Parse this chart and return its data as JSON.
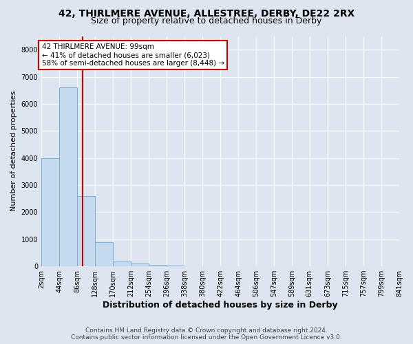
{
  "title_line1": "42, THIRLMERE AVENUE, ALLESTREE, DERBY, DE22 2RX",
  "title_line2": "Size of property relative to detached houses in Derby",
  "xlabel": "Distribution of detached houses by size in Derby",
  "ylabel": "Number of detached properties",
  "bin_edges": [
    2,
    44,
    86,
    128,
    170,
    212,
    254,
    296,
    338,
    380,
    422,
    464,
    506,
    547,
    589,
    631,
    673,
    715,
    757,
    799,
    841
  ],
  "bar_heights": [
    4000,
    6600,
    2600,
    900,
    200,
    100,
    50,
    30,
    10,
    5,
    3,
    2,
    1,
    1,
    1,
    0,
    0,
    0,
    0,
    0
  ],
  "bar_color": "#c5d9ec",
  "bar_edge_color": "#7bafd4",
  "property_size": 99,
  "property_line_color": "#cc0000",
  "ylim": [
    0,
    8500
  ],
  "yticks": [
    0,
    1000,
    2000,
    3000,
    4000,
    5000,
    6000,
    7000,
    8000
  ],
  "annotation_text": "42 THIRLMERE AVENUE: 99sqm\n← 41% of detached houses are smaller (6,023)\n58% of semi-detached houses are larger (8,448) →",
  "annotation_box_color": "#ffffff",
  "annotation_box_edge_color": "#cc0000",
  "footer_line1": "Contains HM Land Registry data © Crown copyright and database right 2024.",
  "footer_line2": "Contains public sector information licensed under the Open Government Licence v3.0.",
  "background_color": "#dde6f0",
  "plot_background_color": "#dde6f0",
  "grid_color": "#ffffff",
  "title1_fontsize": 10,
  "title2_fontsize": 9,
  "xlabel_fontsize": 9,
  "ylabel_fontsize": 8,
  "tick_fontsize": 7,
  "footer_fontsize": 6.5
}
